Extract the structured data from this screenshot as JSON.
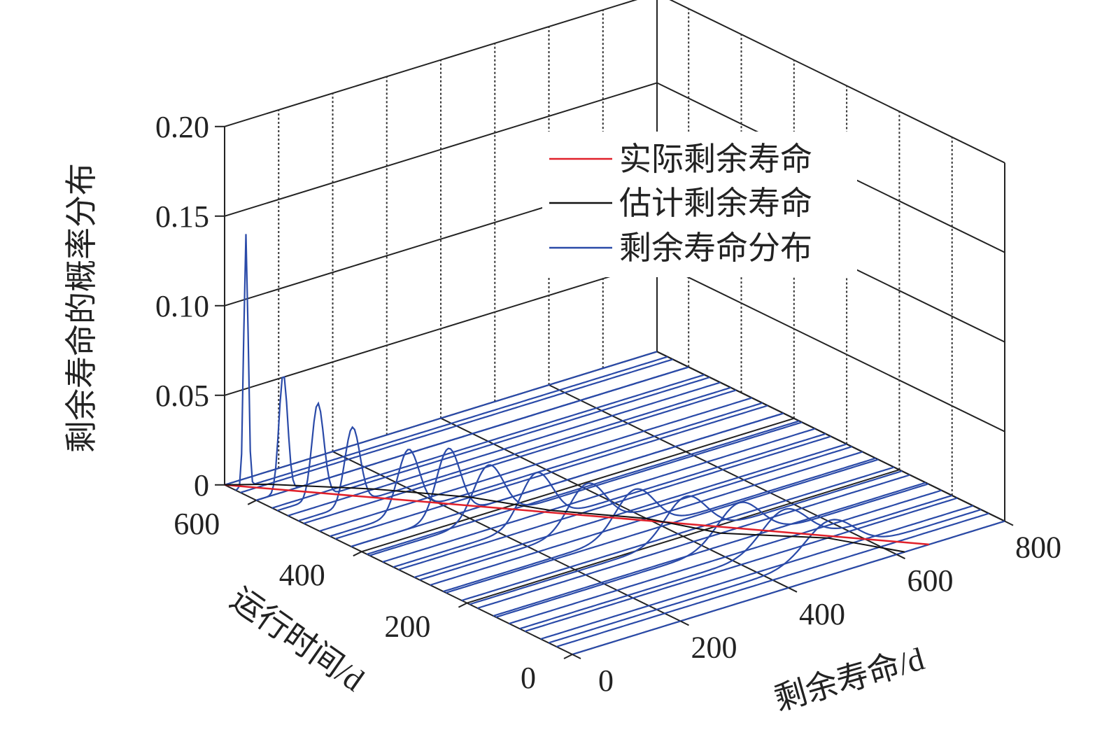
{
  "chart_data": {
    "type": "3d-line",
    "title": "",
    "xlabel": "剩余寿命/d",
    "ylabel": "运行时间/d",
    "zlabel": "剩余寿命的概率分布",
    "x_ticks": [
      "0",
      "200",
      "400",
      "600",
      "800"
    ],
    "y_ticks": [
      "0",
      "200",
      "400",
      "600"
    ],
    "z_ticks": [
      "0",
      "0.05",
      "0.10",
      "0.15",
      "0.20"
    ],
    "xlim": [
      0,
      800
    ],
    "ylim": [
      0,
      660
    ],
    "zlim": [
      0,
      0.2
    ],
    "grid": true,
    "legend_position": "top-right",
    "legend": [
      {
        "label": "实际剩余寿命",
        "color": "#e0202a"
      },
      {
        "label": "估计剩余寿命",
        "color": "#111111"
      },
      {
        "label": "剩余寿命分布",
        "color": "#2a4aa8"
      }
    ],
    "actual_rul": {
      "y": [
        0,
        660
      ],
      "x": [
        660,
        0
      ]
    },
    "estimated_rul": {
      "y": [
        0,
        90,
        180,
        270,
        360,
        450,
        540,
        630,
        660
      ],
      "x": [
        615,
        560,
        450,
        400,
        310,
        250,
        160,
        50,
        0
      ]
    },
    "distributions": [
      {
        "y": 0,
        "peak": 0,
        "height": 0,
        "width": 0
      },
      {
        "y": 30,
        "peak": 0,
        "height": 0,
        "width": 0
      },
      {
        "y": 60,
        "peak": 0,
        "height": 0,
        "width": 0
      },
      {
        "y": 90,
        "peak": 0,
        "height": 0,
        "width": 0
      },
      {
        "y": 120,
        "peak": 0,
        "height": 0,
        "width": 0
      },
      {
        "y": 150,
        "peak": 0,
        "height": 0,
        "width": 0
      },
      {
        "y": 180,
        "peak": 0,
        "height": 0,
        "width": 0
      },
      {
        "y": 210,
        "peak": 0,
        "height": 0,
        "width": 0
      },
      {
        "y": 240,
        "peak": 0,
        "height": 0,
        "width": 0
      },
      {
        "y": 270,
        "peak": 0,
        "height": 0,
        "width": 0
      },
      {
        "y": 300,
        "peak": 0,
        "height": 0,
        "width": 0
      },
      {
        "y": 330,
        "peak": 0,
        "height": 0,
        "width": 0
      },
      {
        "y": 360,
        "peak": 0,
        "height": 0,
        "width": 0
      },
      {
        "y": 390,
        "peak": 0,
        "height": 0,
        "width": 0
      },
      {
        "y": 420,
        "peak": 0,
        "height": 0,
        "width": 0
      },
      {
        "y": 450,
        "peak": 0,
        "height": 0,
        "width": 0
      },
      {
        "y": 480,
        "peak": 0,
        "height": 0,
        "width": 0
      },
      {
        "y": 510,
        "peak": 0,
        "height": 0,
        "width": 0
      },
      {
        "y": 540,
        "peak": 0,
        "height": 0,
        "width": 0
      },
      {
        "y": 570,
        "peak": 0,
        "height": 0,
        "width": 0
      },
      {
        "y": 600,
        "peak": 0,
        "height": 0,
        "width": 0
      },
      {
        "y": 630,
        "peak": 0,
        "height": 0,
        "width": 0
      },
      {
        "y": 660,
        "peak": 0,
        "height": 0,
        "width": 0
      },
      {
        "y": 45,
        "peak": 520,
        "height": 0.02,
        "width": 45
      },
      {
        "y": 100,
        "peak": 490,
        "height": 0.021,
        "width": 42
      },
      {
        "y": 145,
        "peak": 450,
        "height": 0.022,
        "width": 40
      },
      {
        "y": 195,
        "peak": 400,
        "height": 0.023,
        "width": 38
      },
      {
        "y": 245,
        "peak": 355,
        "height": 0.024,
        "width": 36
      },
      {
        "y": 290,
        "peak": 310,
        "height": 0.025,
        "width": 34
      },
      {
        "y": 340,
        "peak": 265,
        "height": 0.028,
        "width": 30
      },
      {
        "y": 385,
        "peak": 220,
        "height": 0.03,
        "width": 28
      },
      {
        "y": 420,
        "peak": 180,
        "height": 0.038,
        "width": 22
      },
      {
        "y": 460,
        "peak": 145,
        "height": 0.035,
        "width": 20
      },
      {
        "y": 520,
        "peak": 100,
        "height": 0.043,
        "width": 14
      },
      {
        "y": 560,
        "peak": 75,
        "height": 0.053,
        "width": 11
      },
      {
        "y": 600,
        "peak": 50,
        "height": 0.066,
        "width": 8
      },
      {
        "y": 640,
        "peak": 20,
        "height": 0.141,
        "width": 4
      }
    ]
  }
}
